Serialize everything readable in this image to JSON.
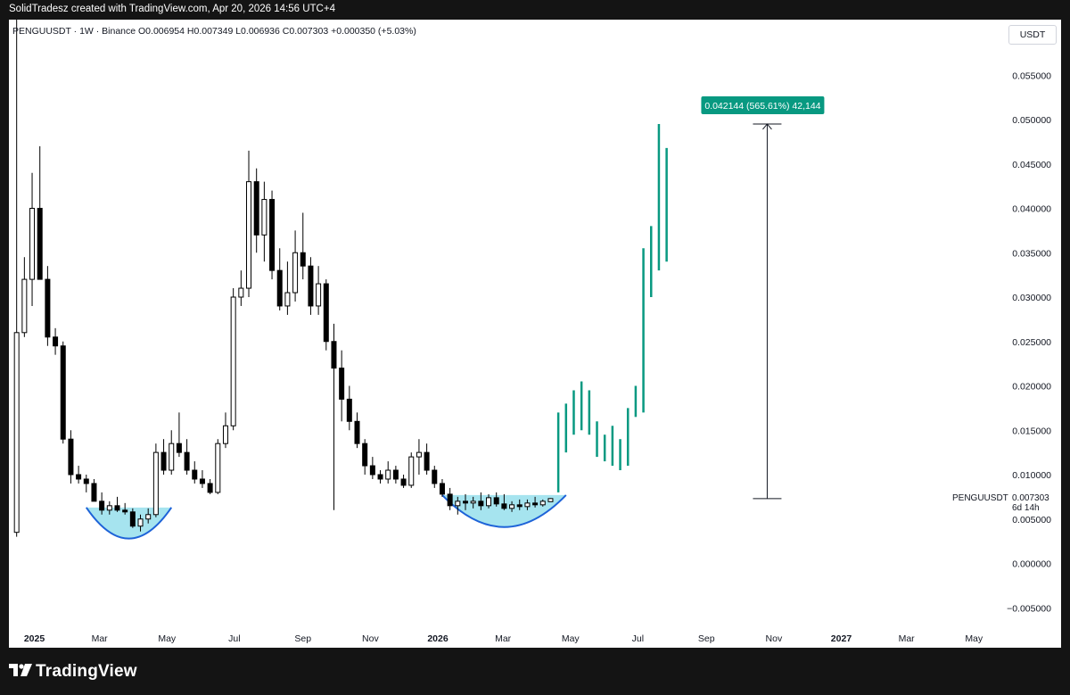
{
  "header": {
    "caption": "SolidTradesz created with TradingView.com, Apr 20, 2026 14:56 UTC+4"
  },
  "symbol_bar": {
    "symbol": "PENGUUSDT · 1W · Binance",
    "open": "O0.006954",
    "high": "H0.007349",
    "low": "L0.006936",
    "close": "C0.007303",
    "change": "+0.000350 (+5.03%)"
  },
  "currency_button": "USDT",
  "footer": {
    "brand": "TradingView"
  },
  "colors": {
    "background": "#ffffff",
    "candle": "#000000",
    "projection": "#089981",
    "cup_fill": "#a6e4ef",
    "cup_stroke": "#1e63d8",
    "measure_label_bg": "#089981",
    "frame": "#141414"
  },
  "chart_data": {
    "type": "candlestick",
    "symbol": "PENGUUSDT",
    "interval": "1W",
    "exchange": "Binance",
    "ylim": [
      -0.006,
      0.06
    ],
    "y_ticks": [
      "0.055000",
      "0.050000",
      "0.045000",
      "0.040000",
      "0.035000",
      "0.030000",
      "0.025000",
      "0.020000",
      "0.015000",
      "0.010000",
      "0.005000",
      "0.000000",
      "−0.005000"
    ],
    "y_tick_values": [
      0.055,
      0.05,
      0.045,
      0.04,
      0.035,
      0.03,
      0.025,
      0.02,
      0.015,
      0.01,
      0.005,
      0.0,
      -0.005
    ],
    "x_ticks": [
      "2025",
      "Mar",
      "May",
      "Jul",
      "Sep",
      "Nov",
      "2026",
      "Mar",
      "May",
      "Jul",
      "Sep",
      "Nov",
      "2027",
      "Mar",
      "May"
    ],
    "x_tick_dates": [
      "2025-01-01",
      "2025-03-01",
      "2025-05-01",
      "2025-07-01",
      "2025-09-01",
      "2025-11-01",
      "2026-01-01",
      "2026-03-01",
      "2026-05-01",
      "2026-07-01",
      "2026-09-01",
      "2026-11-01",
      "2027-01-01",
      "2027-03-01",
      "2027-05-01"
    ],
    "x_range": [
      "2024-12-09",
      "2027-05-25"
    ],
    "candles": [
      {
        "date": "2024-12-16",
        "o": 0.0035,
        "h": 0.066,
        "l": 0.003,
        "c": 0.026
      },
      {
        "date": "2024-12-23",
        "o": 0.026,
        "h": 0.0345,
        "l": 0.0255,
        "c": 0.032
      },
      {
        "date": "2024-12-30",
        "o": 0.032,
        "h": 0.044,
        "l": 0.029,
        "c": 0.04
      },
      {
        "date": "2025-01-06",
        "o": 0.04,
        "h": 0.047,
        "l": 0.032,
        "c": 0.032
      },
      {
        "date": "2025-01-13",
        "o": 0.032,
        "h": 0.0335,
        "l": 0.0245,
        "c": 0.0255
      },
      {
        "date": "2025-01-20",
        "o": 0.0255,
        "h": 0.0265,
        "l": 0.0235,
        "c": 0.0245
      },
      {
        "date": "2025-01-27",
        "o": 0.0245,
        "h": 0.025,
        "l": 0.0135,
        "c": 0.014
      },
      {
        "date": "2025-02-03",
        "o": 0.014,
        "h": 0.015,
        "l": 0.009,
        "c": 0.01
      },
      {
        "date": "2025-02-10",
        "o": 0.01,
        "h": 0.011,
        "l": 0.009,
        "c": 0.0095
      },
      {
        "date": "2025-02-17",
        "o": 0.0095,
        "h": 0.01,
        "l": 0.008,
        "c": 0.009
      },
      {
        "date": "2025-02-24",
        "o": 0.009,
        "h": 0.0095,
        "l": 0.007,
        "c": 0.007
      },
      {
        "date": "2025-03-03",
        "o": 0.007,
        "h": 0.008,
        "l": 0.0055,
        "c": 0.006
      },
      {
        "date": "2025-03-10",
        "o": 0.006,
        "h": 0.007,
        "l": 0.0055,
        "c": 0.0065
      },
      {
        "date": "2025-03-17",
        "o": 0.0065,
        "h": 0.0075,
        "l": 0.0058,
        "c": 0.006
      },
      {
        "date": "2025-03-24",
        "o": 0.006,
        "h": 0.0068,
        "l": 0.0055,
        "c": 0.0058
      },
      {
        "date": "2025-03-31",
        "o": 0.0058,
        "h": 0.0062,
        "l": 0.004,
        "c": 0.0042
      },
      {
        "date": "2025-04-07",
        "o": 0.0042,
        "h": 0.0055,
        "l": 0.0036,
        "c": 0.005
      },
      {
        "date": "2025-04-14",
        "o": 0.005,
        "h": 0.0062,
        "l": 0.0045,
        "c": 0.0055
      },
      {
        "date": "2025-04-21",
        "o": 0.0055,
        "h": 0.0135,
        "l": 0.0052,
        "c": 0.0125
      },
      {
        "date": "2025-04-28",
        "o": 0.0125,
        "h": 0.014,
        "l": 0.01,
        "c": 0.0105
      },
      {
        "date": "2025-05-05",
        "o": 0.0105,
        "h": 0.015,
        "l": 0.01,
        "c": 0.0135
      },
      {
        "date": "2025-05-12",
        "o": 0.0135,
        "h": 0.017,
        "l": 0.012,
        "c": 0.0125
      },
      {
        "date": "2025-05-19",
        "o": 0.0125,
        "h": 0.014,
        "l": 0.01,
        "c": 0.0105
      },
      {
        "date": "2025-05-26",
        "o": 0.0105,
        "h": 0.0115,
        "l": 0.009,
        "c": 0.0095
      },
      {
        "date": "2025-06-02",
        "o": 0.0095,
        "h": 0.0105,
        "l": 0.0085,
        "c": 0.009
      },
      {
        "date": "2025-06-09",
        "o": 0.009,
        "h": 0.0095,
        "l": 0.0078,
        "c": 0.008
      },
      {
        "date": "2025-06-16",
        "o": 0.008,
        "h": 0.014,
        "l": 0.0078,
        "c": 0.0135
      },
      {
        "date": "2025-06-23",
        "o": 0.0135,
        "h": 0.017,
        "l": 0.013,
        "c": 0.0155
      },
      {
        "date": "2025-06-30",
        "o": 0.0155,
        "h": 0.031,
        "l": 0.015,
        "c": 0.03
      },
      {
        "date": "2025-07-07",
        "o": 0.03,
        "h": 0.033,
        "l": 0.029,
        "c": 0.031
      },
      {
        "date": "2025-07-14",
        "o": 0.031,
        "h": 0.0465,
        "l": 0.03,
        "c": 0.043
      },
      {
        "date": "2025-07-21",
        "o": 0.043,
        "h": 0.0445,
        "l": 0.035,
        "c": 0.037
      },
      {
        "date": "2025-07-28",
        "o": 0.037,
        "h": 0.043,
        "l": 0.034,
        "c": 0.041
      },
      {
        "date": "2025-08-04",
        "o": 0.041,
        "h": 0.042,
        "l": 0.032,
        "c": 0.033
      },
      {
        "date": "2025-08-11",
        "o": 0.033,
        "h": 0.0355,
        "l": 0.0285,
        "c": 0.029
      },
      {
        "date": "2025-08-18",
        "o": 0.029,
        "h": 0.034,
        "l": 0.028,
        "c": 0.0305
      },
      {
        "date": "2025-08-25",
        "o": 0.0305,
        "h": 0.0375,
        "l": 0.0295,
        "c": 0.035
      },
      {
        "date": "2025-09-01",
        "o": 0.035,
        "h": 0.0395,
        "l": 0.032,
        "c": 0.0335
      },
      {
        "date": "2025-09-08",
        "o": 0.0335,
        "h": 0.0345,
        "l": 0.028,
        "c": 0.029
      },
      {
        "date": "2025-09-15",
        "o": 0.029,
        "h": 0.0335,
        "l": 0.028,
        "c": 0.0315
      },
      {
        "date": "2025-09-22",
        "o": 0.0315,
        "h": 0.032,
        "l": 0.024,
        "c": 0.025
      },
      {
        "date": "2025-09-29",
        "o": 0.025,
        "h": 0.027,
        "l": 0.006,
        "c": 0.022
      },
      {
        "date": "2025-10-06",
        "o": 0.022,
        "h": 0.024,
        "l": 0.016,
        "c": 0.0185
      },
      {
        "date": "2025-10-13",
        "o": 0.0185,
        "h": 0.02,
        "l": 0.015,
        "c": 0.016
      },
      {
        "date": "2025-10-20",
        "o": 0.016,
        "h": 0.017,
        "l": 0.013,
        "c": 0.0135
      },
      {
        "date": "2025-10-27",
        "o": 0.0135,
        "h": 0.014,
        "l": 0.01,
        "c": 0.011
      },
      {
        "date": "2025-11-03",
        "o": 0.011,
        "h": 0.012,
        "l": 0.0095,
        "c": 0.01
      },
      {
        "date": "2025-11-10",
        "o": 0.01,
        "h": 0.0105,
        "l": 0.009,
        "c": 0.0095
      },
      {
        "date": "2025-11-17",
        "o": 0.0095,
        "h": 0.0115,
        "l": 0.009,
        "c": 0.0105
      },
      {
        "date": "2025-11-24",
        "o": 0.0105,
        "h": 0.011,
        "l": 0.009,
        "c": 0.0095
      },
      {
        "date": "2025-12-01",
        "o": 0.0095,
        "h": 0.01,
        "l": 0.0085,
        "c": 0.0088
      },
      {
        "date": "2025-12-08",
        "o": 0.0088,
        "h": 0.0125,
        "l": 0.0085,
        "c": 0.012
      },
      {
        "date": "2025-12-15",
        "o": 0.012,
        "h": 0.014,
        "l": 0.01,
        "c": 0.0125
      },
      {
        "date": "2025-12-22",
        "o": 0.0125,
        "h": 0.0135,
        "l": 0.01,
        "c": 0.0105
      },
      {
        "date": "2025-12-29",
        "o": 0.0105,
        "h": 0.011,
        "l": 0.0085,
        "c": 0.009
      },
      {
        "date": "2026-01-05",
        "o": 0.009,
        "h": 0.0095,
        "l": 0.0075,
        "c": 0.0078
      },
      {
        "date": "2026-01-12",
        "o": 0.0078,
        "h": 0.0085,
        "l": 0.006,
        "c": 0.0065
      },
      {
        "date": "2026-01-19",
        "o": 0.0065,
        "h": 0.0075,
        "l": 0.0055,
        "c": 0.007
      },
      {
        "date": "2026-01-26",
        "o": 0.007,
        "h": 0.0078,
        "l": 0.006,
        "c": 0.0068
      },
      {
        "date": "2026-02-02",
        "o": 0.0068,
        "h": 0.0075,
        "l": 0.0062,
        "c": 0.007
      },
      {
        "date": "2026-02-09",
        "o": 0.007,
        "h": 0.008,
        "l": 0.006,
        "c": 0.0065
      },
      {
        "date": "2026-02-16",
        "o": 0.0065,
        "h": 0.0078,
        "l": 0.0062,
        "c": 0.0074
      },
      {
        "date": "2026-02-23",
        "o": 0.0074,
        "h": 0.008,
        "l": 0.0064,
        "c": 0.0067
      },
      {
        "date": "2026-03-02",
        "o": 0.0067,
        "h": 0.0078,
        "l": 0.006,
        "c": 0.0062
      },
      {
        "date": "2026-03-09",
        "o": 0.0062,
        "h": 0.007,
        "l": 0.0058,
        "c": 0.0066
      },
      {
        "date": "2026-03-16",
        "o": 0.0066,
        "h": 0.0072,
        "l": 0.006,
        "c": 0.0064
      },
      {
        "date": "2026-03-23",
        "o": 0.0064,
        "h": 0.0072,
        "l": 0.006,
        "c": 0.0068
      },
      {
        "date": "2026-03-30",
        "o": 0.0068,
        "h": 0.0075,
        "l": 0.0063,
        "c": 0.0066
      },
      {
        "date": "2026-04-06",
        "o": 0.0066,
        "h": 0.0072,
        "l": 0.0064,
        "c": 0.007
      },
      {
        "date": "2026-04-13",
        "o": 0.006954,
        "h": 0.007349,
        "l": 0.006936,
        "c": 0.007303
      }
    ],
    "projection_bars": [
      {
        "date": "2026-04-20",
        "h": 0.017,
        "l": 0.008
      },
      {
        "date": "2026-04-27",
        "h": 0.018,
        "l": 0.0125
      },
      {
        "date": "2026-05-04",
        "h": 0.0195,
        "l": 0.0145
      },
      {
        "date": "2026-05-11",
        "h": 0.0205,
        "l": 0.015
      },
      {
        "date": "2026-05-18",
        "h": 0.0195,
        "l": 0.0145
      },
      {
        "date": "2026-05-25",
        "h": 0.016,
        "l": 0.012
      },
      {
        "date": "2026-06-01",
        "h": 0.0145,
        "l": 0.0115
      },
      {
        "date": "2026-06-08",
        "h": 0.0155,
        "l": 0.011
      },
      {
        "date": "2026-06-15",
        "h": 0.014,
        "l": 0.0105
      },
      {
        "date": "2026-06-22",
        "h": 0.0175,
        "l": 0.011
      },
      {
        "date": "2026-06-29",
        "h": 0.02,
        "l": 0.0165
      },
      {
        "date": "2026-07-06",
        "h": 0.0355,
        "l": 0.017
      },
      {
        "date": "2026-07-13",
        "h": 0.038,
        "l": 0.03
      },
      {
        "date": "2026-07-20",
        "h": 0.0495,
        "l": 0.033
      },
      {
        "date": "2026-07-27",
        "h": 0.0468,
        "l": 0.034
      }
    ],
    "cups": [
      {
        "start": "2025-02-17",
        "end": "2025-05-05",
        "rim": 0.0063,
        "bottom": 0.0028
      },
      {
        "start": "2026-01-05",
        "end": "2026-04-27",
        "rim": 0.0077,
        "bottom": 0.0041
      }
    ],
    "measure": {
      "date": "2026-10-26",
      "from": 0.0073,
      "to": 0.0495,
      "label": "0.042144 (565.61%) 42,144"
    },
    "last_price": {
      "symbol": "PENGUUSDT",
      "value": "0.007303",
      "time_left": "6d 14h",
      "value_num": 0.007303
    }
  }
}
